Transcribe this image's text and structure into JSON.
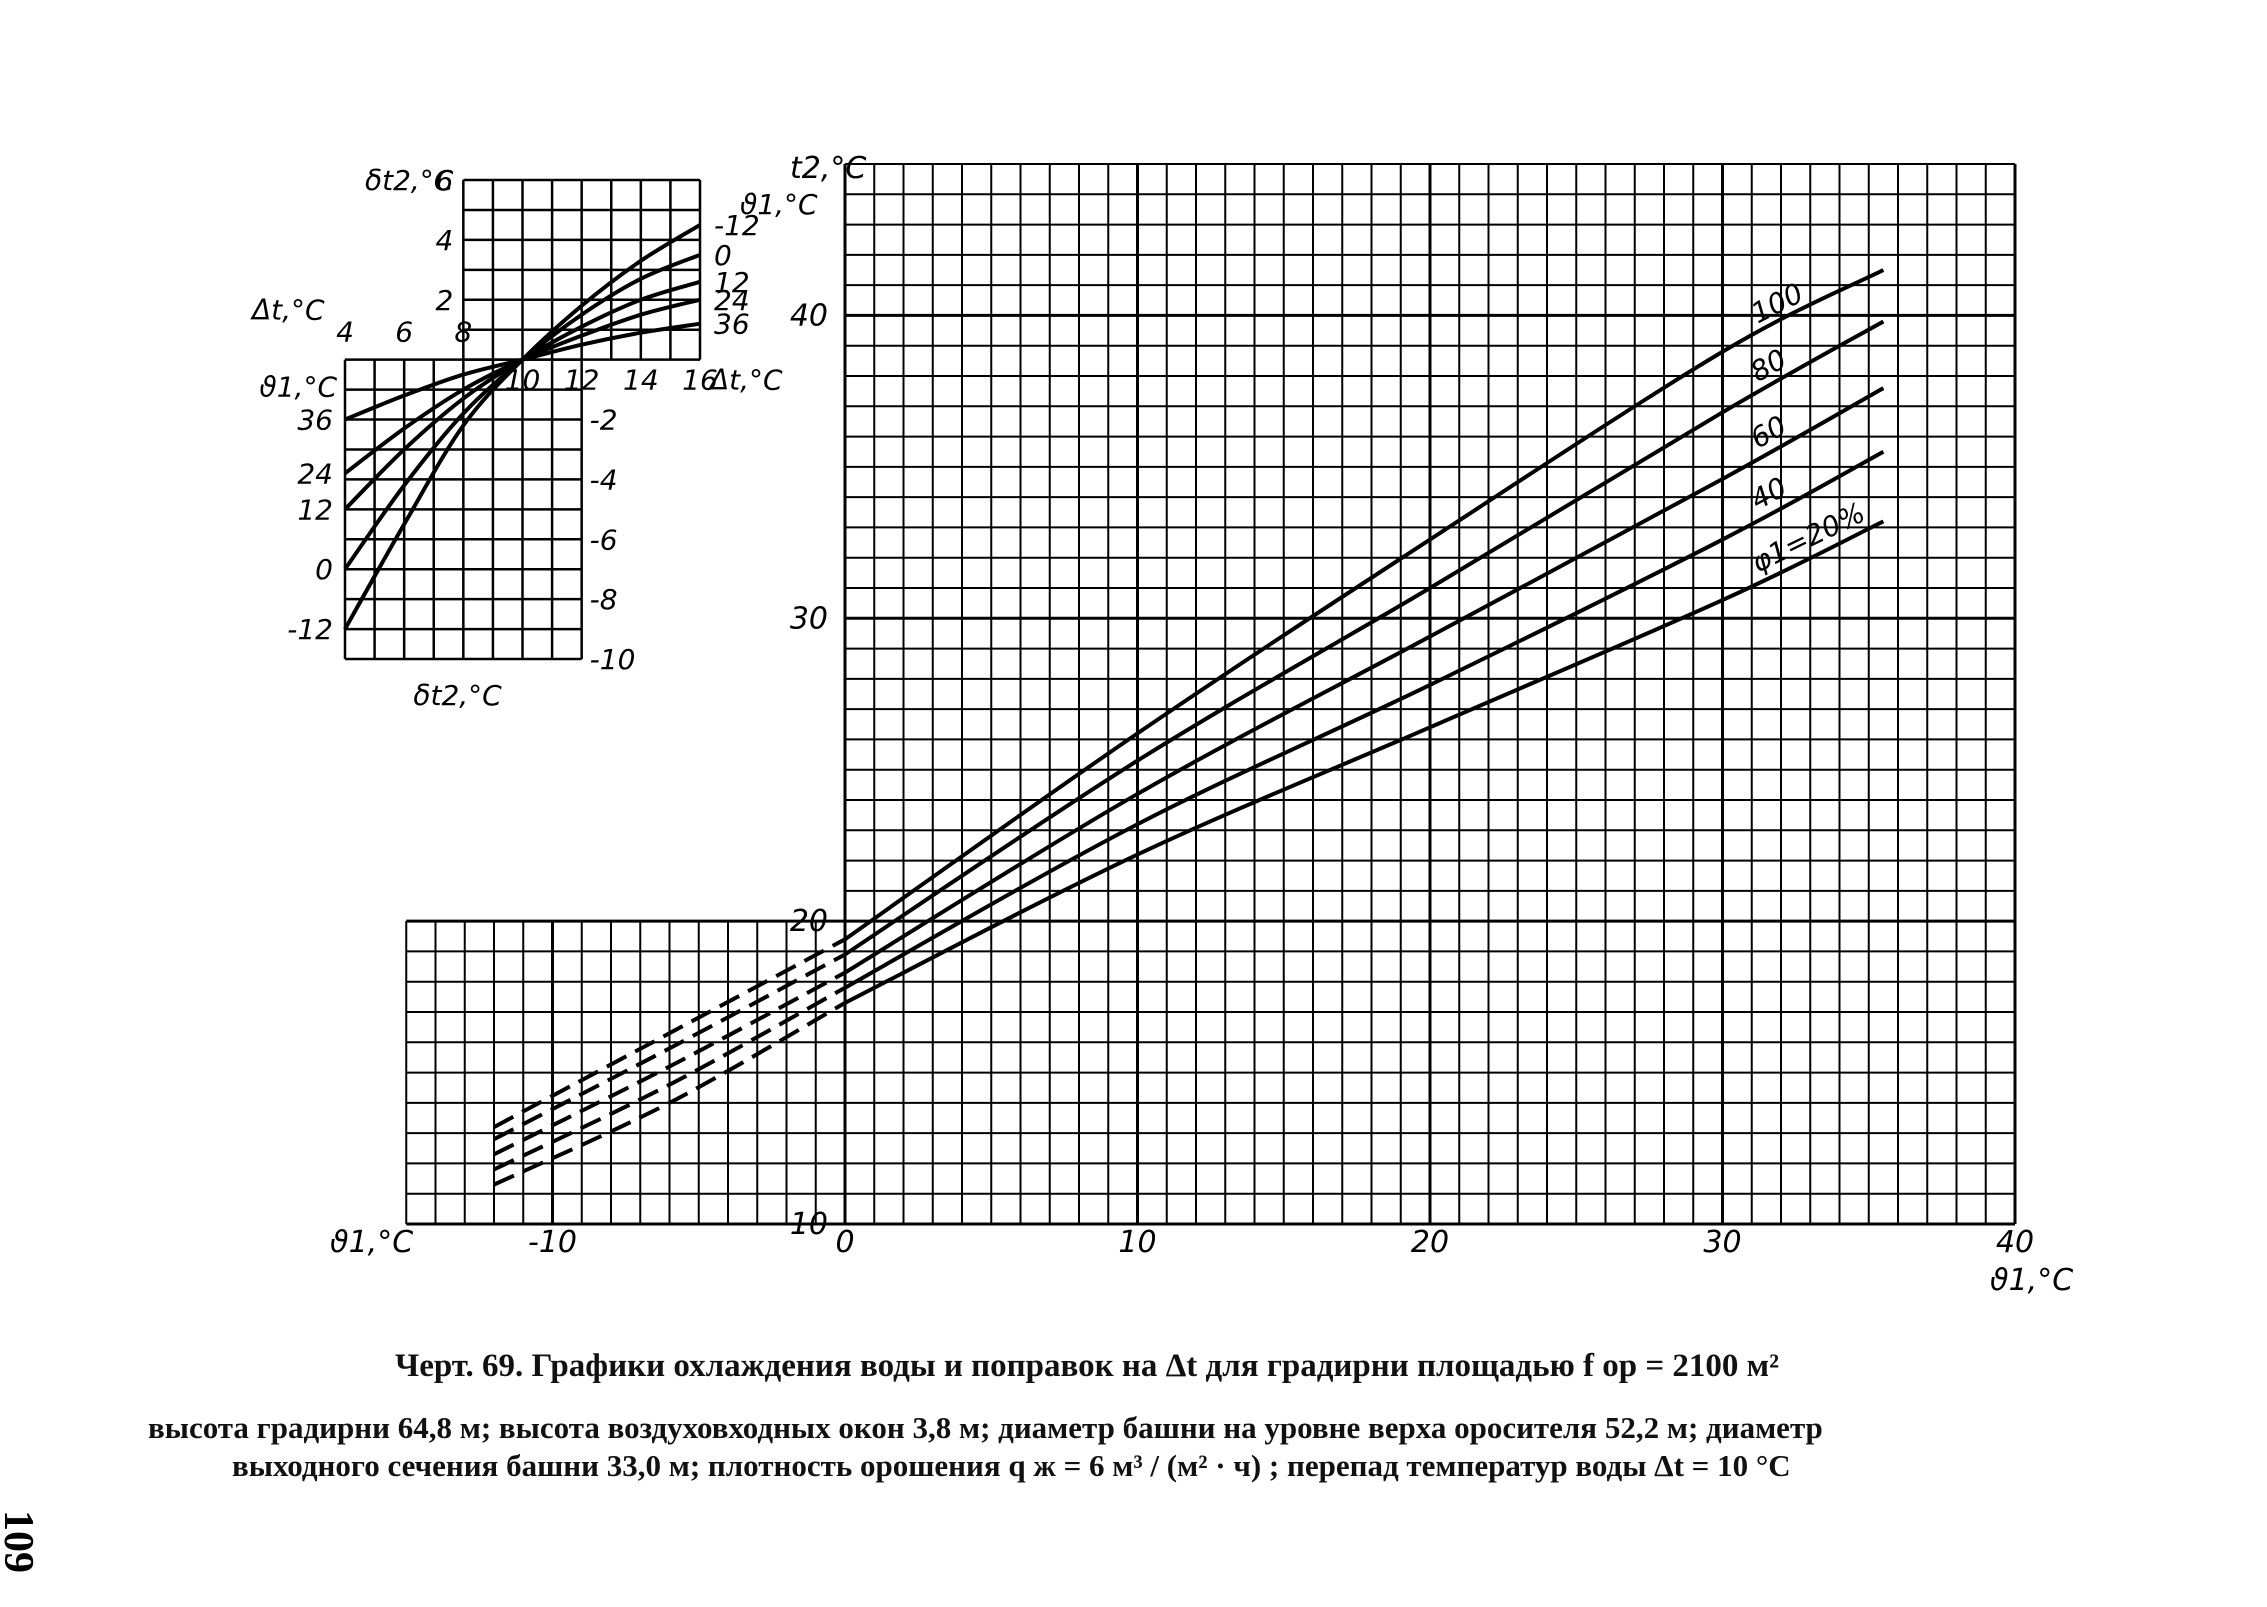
{
  "caption": {
    "line1": "Черт. 69. Графики охлаждения воды и поправок на Δt для градирни площадью f ор = 2100 м²",
    "line2": "высота градирни 64,8 м;  высота воздуховходных окон 3,8 м;  диаметр башни на уровне верха оросителя 52,2 м;  диаметр",
    "line3": "выходного сечения башни 33,0 м;  плотность орошения q ж = 6 м³ / (м² · ч) ;  перепад температур воды  Δt = 10 °C"
  },
  "page_number": "109",
  "chart_data": [
    {
      "type": "line",
      "title": "",
      "xlabel": "ϑ1,°C",
      "ylabel": "t2,°C",
      "xlim": [
        -15,
        40
      ],
      "ylim": [
        10,
        45
      ],
      "x_ticks": [
        "-10",
        "0",
        "10",
        "20",
        "30",
        "40"
      ],
      "y_ticks": [
        "10",
        "20",
        "30",
        "40"
      ],
      "x_axis_corner_label": "ϑ1,°C",
      "grid": true,
      "series": [
        {
          "name": "φ1=20%",
          "solid": [
            [
              0,
              17.3
            ],
            [
              10,
              22.2
            ],
            [
              20,
              26.4
            ],
            [
              30,
              30.6
            ],
            [
              35.5,
              33.2
            ]
          ],
          "dashed": [
            [
              -12,
              11.3
            ],
            [
              -6,
              14.0
            ],
            [
              0,
              17.3
            ]
          ]
        },
        {
          "name": "40",
          "solid": [
            [
              0,
              17.8
            ],
            [
              10,
              23.2
            ],
            [
              20,
              27.8
            ],
            [
              30,
              32.6
            ],
            [
              35.5,
              35.5
            ]
          ],
          "dashed": [
            [
              -12,
              11.8
            ],
            [
              -6,
              14.6
            ],
            [
              0,
              17.8
            ]
          ]
        },
        {
          "name": "60",
          "solid": [
            [
              0,
              18.3
            ],
            [
              10,
              24.2
            ],
            [
              20,
              29.4
            ],
            [
              30,
              34.6
            ],
            [
              35.5,
              37.6
            ]
          ],
          "dashed": [
            [
              -12,
              12.3
            ],
            [
              -6,
              15.2
            ],
            [
              0,
              18.3
            ]
          ]
        },
        {
          "name": "80",
          "solid": [
            [
              0,
              18.9
            ],
            [
              10,
              25.3
            ],
            [
              20,
              31.0
            ],
            [
              30,
              36.8
            ],
            [
              35.5,
              39.8
            ]
          ],
          "dashed": [
            [
              -12,
              12.8
            ],
            [
              -6,
              15.8
            ],
            [
              0,
              18.9
            ]
          ]
        },
        {
          "name": "100",
          "solid": [
            [
              0,
              19.4
            ],
            [
              10,
              26.2
            ],
            [
              20,
              32.6
            ],
            [
              30,
              38.8
            ],
            [
              35.5,
              41.5
            ]
          ],
          "dashed": [
            [
              -12,
              13.2
            ],
            [
              -6,
              16.3
            ],
            [
              0,
              19.4
            ]
          ]
        }
      ]
    },
    {
      "type": "line",
      "title": "",
      "xlabel": "Δt,°C",
      "ylabel": "δt2,°C",
      "xlim": [
        4,
        16
      ],
      "ylim": [
        -10,
        6
      ],
      "x_ticks_top": [
        "4",
        "6",
        "8"
      ],
      "x_ticks_bottom": [
        "10",
        "12",
        "14",
        "16"
      ],
      "y_ticks_left": [
        "6",
        "4",
        "2"
      ],
      "y_ticks_right": [
        "-2",
        "-4",
        "-6",
        "-8",
        "-10"
      ],
      "x_axis_top_label": "Δt,°C",
      "x_axis_bottom_label": "Δt,°C",
      "y_axis_top_label": "δt2,°C",
      "y_axis_bottom_label": "δt2,°C",
      "legend_title_right": "ϑ1,°C",
      "legend_title_left": "ϑ1,°C",
      "grid": true,
      "series": [
        {
          "name": "-12",
          "values": [
            [
              4,
              -9.0
            ],
            [
              6,
              -5.5
            ],
            [
              8,
              -2.2
            ],
            [
              10,
              0
            ],
            [
              12,
              1.8
            ],
            [
              14,
              3.3
            ],
            [
              16,
              4.5
            ]
          ]
        },
        {
          "name": "0",
          "values": [
            [
              4,
              -7.0
            ],
            [
              6,
              -4.2
            ],
            [
              8,
              -1.8
            ],
            [
              10,
              0
            ],
            [
              12,
              1.5
            ],
            [
              14,
              2.7
            ],
            [
              16,
              3.5
            ]
          ]
        },
        {
          "name": "12",
          "values": [
            [
              4,
              -5.0
            ],
            [
              6,
              -3.0
            ],
            [
              8,
              -1.3
            ],
            [
              10,
              0
            ],
            [
              12,
              1.1
            ],
            [
              14,
              2.0
            ],
            [
              16,
              2.6
            ]
          ]
        },
        {
          "name": "24",
          "values": [
            [
              4,
              -3.8
            ],
            [
              6,
              -2.3
            ],
            [
              8,
              -1.0
            ],
            [
              10,
              0
            ],
            [
              12,
              0.8
            ],
            [
              14,
              1.5
            ],
            [
              16,
              2.0
            ]
          ]
        },
        {
          "name": "36",
          "values": [
            [
              4,
              -2.0
            ],
            [
              6,
              -1.2
            ],
            [
              8,
              -0.5
            ],
            [
              10,
              0
            ],
            [
              12,
              0.5
            ],
            [
              14,
              0.9
            ],
            [
              16,
              1.2
            ]
          ]
        }
      ]
    }
  ]
}
